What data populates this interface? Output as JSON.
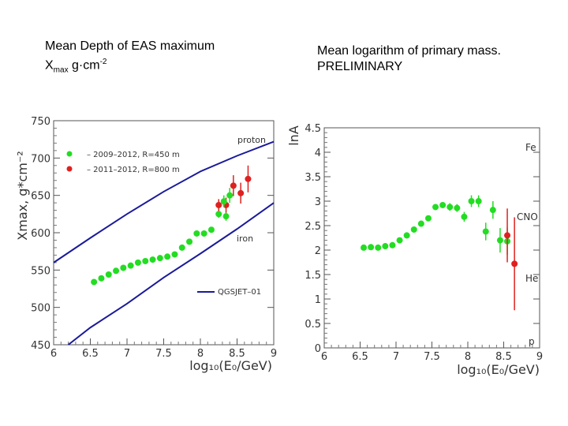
{
  "titles": {
    "left_line1": "Mean Depth of EAS maximum",
    "left_chi": "X",
    "left_sub": "max",
    "left_unit": " g·cm",
    "left_sup": "-2",
    "right_line1": "Mean logarithm of primary mass.",
    "right_line2": "PRELIMINARY"
  },
  "chart_data": [
    {
      "type": "scatter",
      "title": "Mean Depth of EAS maximum",
      "xlabel": "log10(E0/GeV)",
      "ylabel": "Xmax, g*cm^-2",
      "xlim": [
        6,
        9
      ],
      "ylim": [
        450,
        750
      ],
      "xticks": [
        "6",
        "6.5",
        "7",
        "7.5",
        "8",
        "8.5",
        "9"
      ],
      "yticks": [
        "450",
        "500",
        "550",
        "600",
        "650",
        "700",
        "750"
      ],
      "series": [
        {
          "name": "2009-2012, R=450 m",
          "color": "#22dd22",
          "x": [
            6.55,
            6.65,
            6.75,
            6.85,
            6.95,
            7.05,
            7.15,
            7.25,
            7.35,
            7.45,
            7.55,
            7.65,
            7.75,
            7.85,
            7.95,
            8.05,
            8.15,
            8.25,
            8.35
          ],
          "y": [
            534,
            539,
            544,
            549,
            553,
            556,
            560,
            562,
            564,
            566,
            568,
            571,
            580,
            588,
            599,
            599,
            604,
            625,
            622
          ],
          "err": [
            0,
            0,
            0,
            0,
            0,
            0,
            0,
            0,
            0,
            0,
            0,
            0,
            0,
            0,
            0,
            0,
            0,
            5,
            6
          ]
        },
        {
          "name": "2011-2012, R=800 m",
          "color": "#e02020",
          "x": [
            8.25,
            8.35,
            8.45,
            8.55,
            8.65
          ],
          "y": [
            637,
            637,
            663,
            653,
            672
          ],
          "err": [
            8,
            10,
            14,
            14,
            18
          ]
        },
        {
          "name": "green_extra",
          "color": "#22dd22",
          "x": [
            8.32,
            8.4
          ],
          "y": [
            642,
            650
          ],
          "err": [
            8,
            10
          ]
        }
      ],
      "model_lines": [
        {
          "name": "proton",
          "x": [
            6,
            6.5,
            7,
            7.5,
            8,
            8.5,
            9
          ],
          "y": [
            560,
            593,
            625,
            655,
            682,
            703,
            722
          ]
        },
        {
          "name": "iron",
          "x": [
            6.2,
            6.5,
            7,
            7.5,
            8,
            8.5,
            9
          ],
          "y": [
            450,
            473,
            505,
            540,
            572,
            605,
            640
          ]
        }
      ],
      "annotations": [
        "proton",
        "iron"
      ],
      "legend": {
        "entries": [
          "– 2009–2012, R=450 m",
          "– 2011–2012, R=800 m"
        ],
        "model_label": "QGSJET–01",
        "placement": "top-left"
      }
    },
    {
      "type": "scatter",
      "title": "Mean logarithm of primary mass. PRELIMINARY",
      "xlabel": "log10(E0/GeV)",
      "ylabel": "lnA",
      "xlim": [
        6,
        9
      ],
      "ylim": [
        0,
        4.5
      ],
      "xticks": [
        "6",
        "6.5",
        "7",
        "7.5",
        "8",
        "8.5",
        "9"
      ],
      "yticks": [
        "0",
        "0.5",
        "1",
        "1.5",
        "2",
        "2.5",
        "3",
        "3.5",
        "4",
        "4.5"
      ],
      "series": [
        {
          "name": "green",
          "color": "#22dd22",
          "x": [
            6.55,
            6.65,
            6.75,
            6.85,
            6.95,
            7.05,
            7.15,
            7.25,
            7.35,
            7.45,
            7.55,
            7.65,
            7.75,
            7.85,
            7.95,
            8.05,
            8.15,
            8.25,
            8.35,
            8.45,
            8.55
          ],
          "y": [
            2.05,
            2.06,
            2.05,
            2.08,
            2.1,
            2.2,
            2.3,
            2.42,
            2.54,
            2.65,
            2.88,
            2.92,
            2.88,
            2.86,
            2.68,
            3.0,
            3.0,
            2.38,
            2.82,
            2.2,
            2.18
          ],
          "err": [
            0,
            0,
            0,
            0,
            0,
            0,
            0,
            0,
            0,
            0,
            0,
            0.05,
            0.08,
            0.08,
            0.1,
            0.12,
            0.12,
            0.18,
            0.18,
            0.25,
            0.28
          ]
        },
        {
          "name": "red",
          "color": "#e02020",
          "x": [
            8.55,
            8.65
          ],
          "y": [
            2.3,
            1.72
          ],
          "err": [
            0.55,
            0.95
          ]
        }
      ],
      "annotations": [
        "Fe",
        "CNO",
        "He",
        "p"
      ]
    }
  ]
}
